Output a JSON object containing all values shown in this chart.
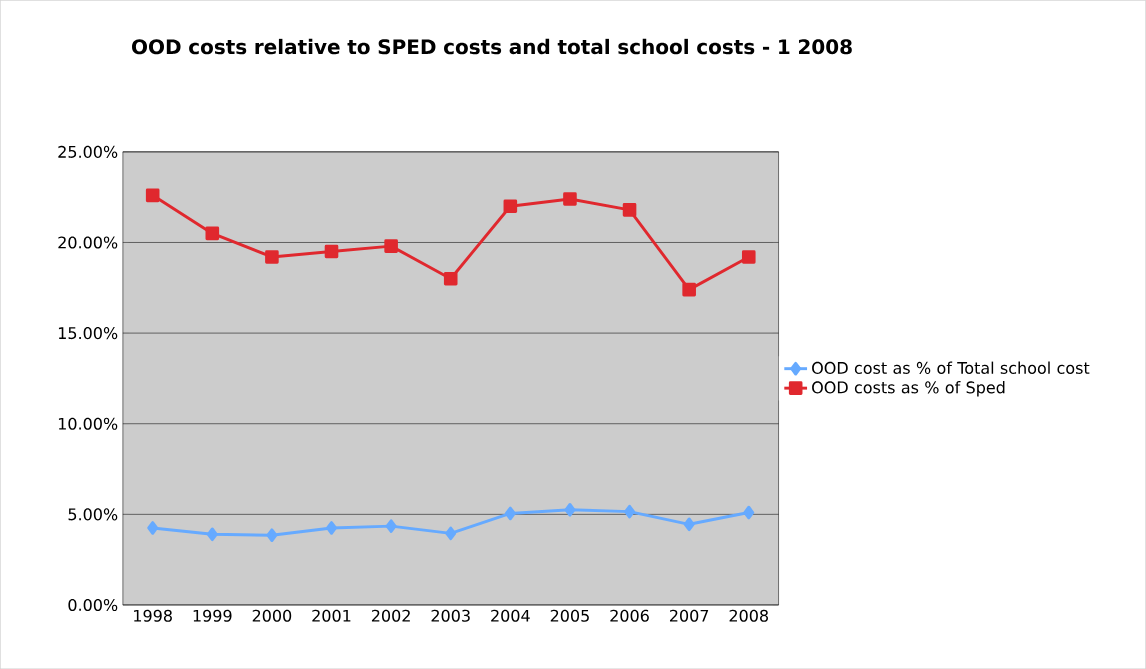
{
  "chart_data": {
    "type": "line",
    "title": "OOD costs relative to SPED costs and total school costs - 1 2008",
    "categories": [
      "1998",
      "1999",
      "2000",
      "2001",
      "2002",
      "2003",
      "2004",
      "2005",
      "2006",
      "2007",
      "2008"
    ],
    "series": [
      {
        "name": "OOD cost as % of Total school cost",
        "color": "#66aaff",
        "marker": "diamond",
        "values": [
          4.25,
          3.9,
          3.85,
          4.25,
          4.35,
          3.95,
          5.05,
          5.25,
          5.15,
          4.45,
          5.1
        ]
      },
      {
        "name": "OOD costs as % of Sped",
        "color": "#e0282e",
        "marker": "square",
        "values": [
          22.6,
          20.5,
          19.2,
          19.5,
          19.8,
          18.0,
          22.0,
          22.4,
          21.8,
          17.4,
          19.2
        ]
      }
    ],
    "ylim": [
      0,
      25
    ],
    "yticks": [
      {
        "value": 0,
        "label": "0.00%"
      },
      {
        "value": 5,
        "label": "5.00%"
      },
      {
        "value": 10,
        "label": "10.00%"
      },
      {
        "value": 15,
        "label": "15.00%"
      },
      {
        "value": 20,
        "label": "20.00%"
      },
      {
        "value": 25,
        "label": "25.00%"
      }
    ],
    "grid": "y",
    "legend": "right"
  }
}
